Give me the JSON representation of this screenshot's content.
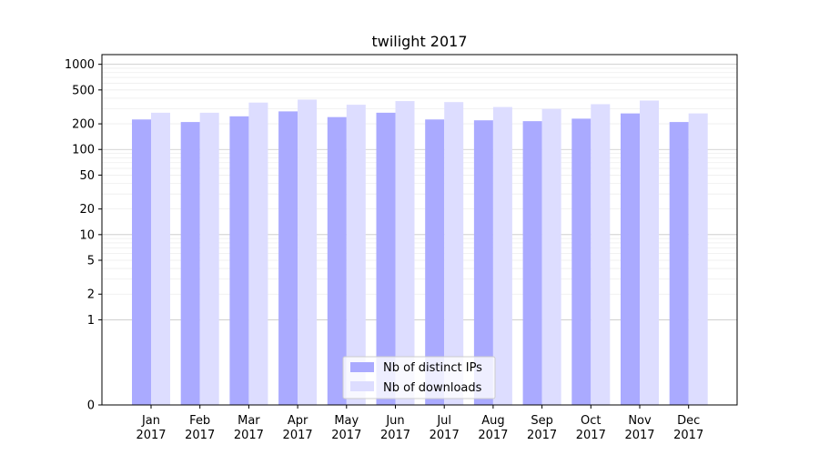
{
  "chart_data": {
    "type": "bar",
    "title": "twilight 2017",
    "xlabel": "",
    "ylabel": "",
    "y_scale": "symlog",
    "ylim": [
      0,
      1300
    ],
    "y_ticks": [
      {
        "value": 0,
        "label": "0"
      },
      {
        "value": 1,
        "label": "1"
      },
      {
        "value": 2,
        "label": "2"
      },
      {
        "value": 5,
        "label": "5"
      },
      {
        "value": 10,
        "label": "10"
      },
      {
        "value": 20,
        "label": "20"
      },
      {
        "value": 50,
        "label": "50"
      },
      {
        "value": 100,
        "label": "100"
      },
      {
        "value": 200,
        "label": "200"
      },
      {
        "value": 500,
        "label": "500"
      },
      {
        "value": 1000,
        "label": "1000"
      }
    ],
    "categories": [
      {
        "month": "Jan",
        "year": "2017"
      },
      {
        "month": "Feb",
        "year": "2017"
      },
      {
        "month": "Mar",
        "year": "2017"
      },
      {
        "month": "Apr",
        "year": "2017"
      },
      {
        "month": "May",
        "year": "2017"
      },
      {
        "month": "Jun",
        "year": "2017"
      },
      {
        "month": "Jul",
        "year": "2017"
      },
      {
        "month": "Aug",
        "year": "2017"
      },
      {
        "month": "Sep",
        "year": "2017"
      },
      {
        "month": "Oct",
        "year": "2017"
      },
      {
        "month": "Nov",
        "year": "2017"
      },
      {
        "month": "Dec",
        "year": "2017"
      }
    ],
    "series": [
      {
        "name": "Nb of distinct IPs",
        "color": "#aaaaff",
        "values": [
          225,
          210,
          245,
          280,
          240,
          270,
          225,
          220,
          215,
          230,
          265,
          210
        ]
      },
      {
        "name": "Nb of downloads",
        "color": "#ddddff",
        "values": [
          270,
          270,
          355,
          385,
          335,
          370,
          360,
          315,
          300,
          340,
          375,
          265
        ]
      }
    ],
    "grid": true,
    "legend_position": "lower-center"
  }
}
